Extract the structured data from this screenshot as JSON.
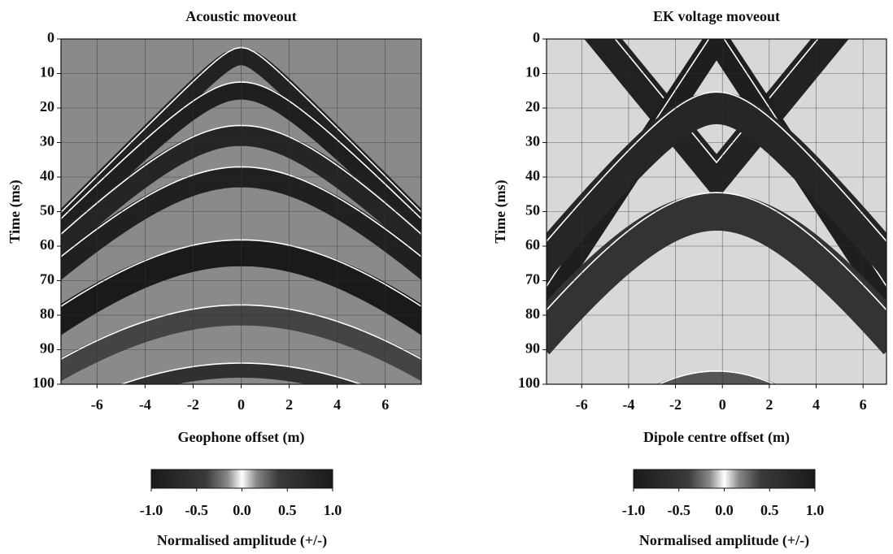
{
  "chart_data": [
    {
      "type": "heatmap",
      "title": "Acoustic moveout",
      "x_label": "Geophone offset (m)",
      "y_label": "Time (ms)",
      "xlim": [
        -7.5,
        7.5
      ],
      "xticks": [
        -6,
        -4,
        -2,
        0,
        2,
        4,
        6
      ],
      "ylim": [
        0,
        100
      ],
      "yticks": [
        0,
        10,
        20,
        30,
        40,
        50,
        60,
        70,
        80,
        90,
        100
      ],
      "y_inverted": true,
      "grid": true,
      "colorbar": {
        "label": "Normalised amplitude (+/-)",
        "lim": [
          -1,
          1
        ],
        "ticks": [
          {
            "value": -1,
            "label": "-1.0"
          },
          {
            "value": -0.5,
            "label": "-0.5"
          },
          {
            "value": 0,
            "label": "0.0"
          },
          {
            "value": 0.5,
            "label": "0.5"
          },
          {
            "value": 1,
            "label": "1.0"
          }
        ]
      }
    },
    {
      "type": "heatmap",
      "title": "EK voltage moveout",
      "x_label": "Dipole centre offset (m)",
      "y_label": "Time (ms)",
      "xlim": [
        -7.5,
        7
      ],
      "xticks": [
        -6,
        -4,
        -2,
        0,
        2,
        4,
        6
      ],
      "ylim": [
        0,
        100
      ],
      "yticks": [
        0,
        10,
        20,
        30,
        40,
        50,
        60,
        70,
        80,
        90,
        100
      ],
      "y_inverted": true,
      "grid": true,
      "colorbar": {
        "label": "Normalised amplitude (+/-)",
        "lim": [
          -1,
          1
        ],
        "ticks": [
          {
            "value": -1,
            "label": "-1.0"
          },
          {
            "value": -0.5,
            "label": "-0.5"
          },
          {
            "value": 0,
            "label": "0.0"
          },
          {
            "value": 0.5,
            "label": "0.5"
          },
          {
            "value": 1,
            "label": "1.0"
          }
        ]
      }
    }
  ]
}
